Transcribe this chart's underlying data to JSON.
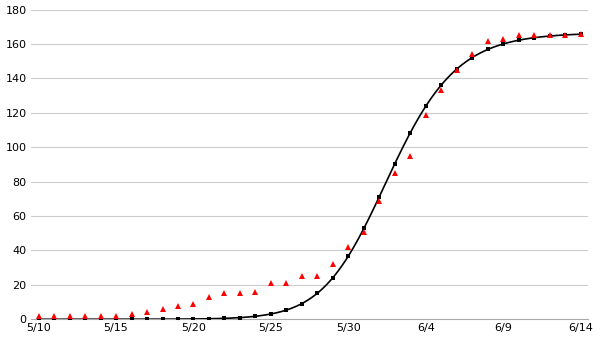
{
  "title": "",
  "ylim": [
    0,
    180
  ],
  "yticks": [
    0,
    20,
    40,
    60,
    80,
    100,
    120,
    140,
    160,
    180
  ],
  "xtick_labels": [
    "5/10",
    "5/15",
    "5/20",
    "5/25",
    "5/30",
    "6/4",
    "6/9",
    "6/14"
  ],
  "xtick_days": [
    0,
    5,
    10,
    15,
    20,
    25,
    30,
    35
  ],
  "background_color": "#ffffff",
  "model_line_color": "#000000",
  "model_marker_color": "#000000",
  "observed_marker_color": "#ff0000",
  "grid_color": "#cccccc",
  "K": 166.5,
  "r": 0.42,
  "tm": 21.5,
  "a": 0.7,
  "obs_days": [
    0,
    1,
    2,
    3,
    4,
    5,
    6,
    7,
    8,
    9,
    10,
    11,
    12,
    13,
    14,
    15,
    16,
    17,
    18,
    19,
    20,
    21,
    22,
    23,
    24,
    25,
    26,
    27,
    28,
    29,
    30,
    31,
    32,
    33,
    34,
    35
  ],
  "obs_vals": [
    2,
    2,
    2,
    2,
    2,
    2,
    3,
    4,
    6,
    8,
    9,
    13,
    15,
    15,
    16,
    21,
    21,
    25,
    25,
    32,
    42,
    51,
    69,
    85,
    95,
    119,
    133,
    145,
    154,
    162,
    163,
    165,
    165,
    165,
    165,
    166
  ]
}
